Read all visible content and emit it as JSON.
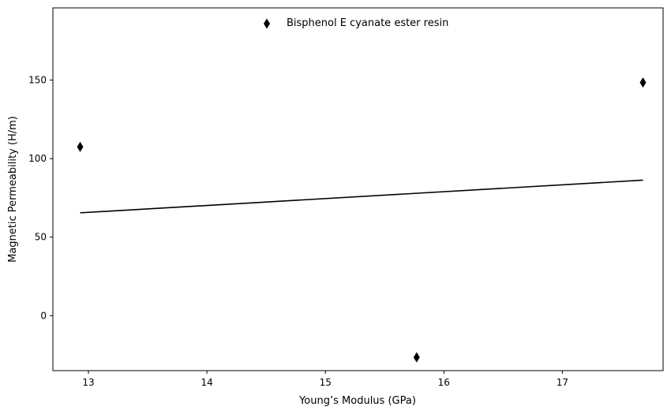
{
  "chart_data": {
    "type": "scatter",
    "xlabel": "Young’s Modulus (GPa)",
    "ylabel": "Magnetic Permeability (H/m)",
    "xlim": [
      12.7,
      17.85
    ],
    "ylim": [
      -35,
      196
    ],
    "xticks": [
      13,
      14,
      15,
      16,
      17
    ],
    "yticks": [
      0,
      50,
      100,
      150
    ],
    "grid": false,
    "legend_position": "top-center",
    "series": [
      {
        "name": "Bisphenol E cyanate ester resin",
        "marker": "thin-diamond",
        "color": "#000000",
        "points": [
          {
            "x": 12.93,
            "y": 107.5
          },
          {
            "x": 15.77,
            "y": -26.5
          },
          {
            "x": 17.68,
            "y": 148.5
          }
        ]
      }
    ],
    "fit_line": {
      "color": "#000000",
      "points": [
        {
          "x": 12.93,
          "y": 65.5
        },
        {
          "x": 17.68,
          "y": 86.3
        }
      ]
    }
  }
}
